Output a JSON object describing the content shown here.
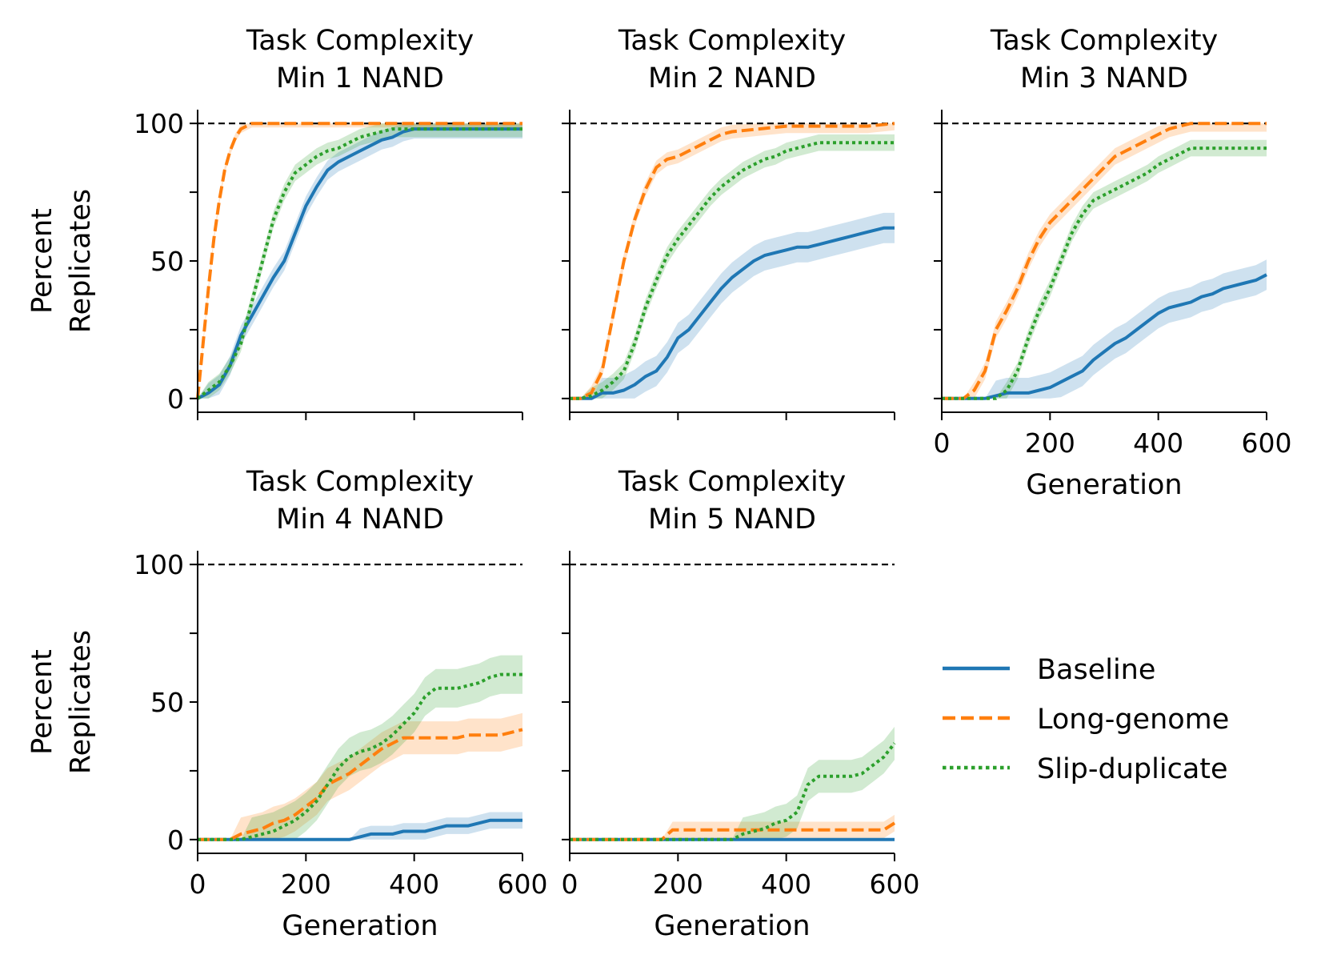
{
  "figure": {
    "y_axis_label_line1": "Percent",
    "y_axis_label_line2": "Replicates",
    "x_axis_label": "Generation",
    "reference_line_value": 100,
    "legend": [
      {
        "label": "Baseline",
        "color": "#1f77b4",
        "style": "solid"
      },
      {
        "label": "Long-genome",
        "color": "#ff7f0e",
        "style": "dashed"
      },
      {
        "label": "Slip-duplicate",
        "color": "#2ca02c",
        "style": "dotted"
      }
    ]
  },
  "chart_data": [
    {
      "type": "line",
      "title_line1": "Task Complexity",
      "title_line2": "Min 1 NAND",
      "xlim": [
        0,
        600
      ],
      "ylim": [
        -5,
        105
      ],
      "xticks": [
        0,
        200,
        400,
        600
      ],
      "yticks": [
        0,
        25,
        50,
        75,
        100
      ],
      "ytick_labels": [
        "0",
        "",
        "50",
        "",
        "100"
      ],
      "show_xtick_labels": false,
      "show_ytick_labels": true,
      "show_xlabel": false,
      "show_ylabel": true,
      "series": [
        {
          "name": "Baseline",
          "color": "#1f77b4",
          "dash": "solid",
          "band": 3.5,
          "x": [
            0,
            20,
            40,
            60,
            80,
            100,
            120,
            140,
            160,
            180,
            200,
            220,
            240,
            260,
            280,
            300,
            320,
            340,
            360,
            380,
            400,
            420,
            440,
            460,
            480,
            500,
            520,
            540,
            560,
            580,
            600
          ],
          "y": [
            0,
            2,
            5,
            12,
            23,
            30,
            37,
            44,
            50,
            60,
            70,
            77,
            83,
            86,
            88,
            90,
            92,
            94,
            95,
            97,
            98,
            98,
            98,
            98,
            98,
            98,
            98,
            98,
            98,
            98,
            98
          ]
        },
        {
          "name": "Long-genome",
          "color": "#ff7f0e",
          "dash": "dashed",
          "band": 1.5,
          "x": [
            0,
            10,
            20,
            30,
            40,
            50,
            60,
            70,
            80,
            90,
            100,
            120,
            600
          ],
          "y": [
            0,
            20,
            40,
            58,
            72,
            83,
            90,
            95,
            98,
            99,
            100,
            100,
            100
          ]
        },
        {
          "name": "Slip-duplicate",
          "color": "#2ca02c",
          "dash": "dotted",
          "band": 3,
          "x": [
            0,
            20,
            40,
            60,
            80,
            100,
            120,
            140,
            160,
            180,
            200,
            220,
            240,
            260,
            280,
            300,
            320,
            340,
            360,
            380,
            400,
            600
          ],
          "y": [
            0,
            3,
            6,
            12,
            20,
            35,
            50,
            65,
            75,
            82,
            85,
            88,
            90,
            91,
            93,
            95,
            96,
            97,
            98,
            98,
            98,
            98
          ]
        }
      ]
    },
    {
      "type": "line",
      "title_line1": "Task Complexity",
      "title_line2": "Min 2 NAND",
      "xlim": [
        0,
        600
      ],
      "ylim": [
        -5,
        105
      ],
      "xticks": [
        0,
        200,
        400,
        600
      ],
      "yticks": [
        0,
        25,
        50,
        75,
        100
      ],
      "ytick_labels": [
        "",
        "",
        "",
        "",
        ""
      ],
      "show_xtick_labels": false,
      "show_ytick_labels": false,
      "show_xlabel": false,
      "show_ylabel": false,
      "series": [
        {
          "name": "Baseline",
          "color": "#1f77b4",
          "dash": "solid",
          "band": 5.5,
          "x": [
            0,
            20,
            40,
            60,
            80,
            100,
            120,
            140,
            160,
            180,
            200,
            220,
            240,
            260,
            280,
            300,
            320,
            340,
            360,
            380,
            400,
            420,
            440,
            460,
            480,
            500,
            520,
            540,
            560,
            580,
            600
          ],
          "y": [
            0,
            0,
            0,
            2,
            2,
            3,
            5,
            8,
            10,
            15,
            22,
            25,
            30,
            35,
            40,
            44,
            47,
            50,
            52,
            53,
            54,
            55,
            55,
            56,
            57,
            58,
            59,
            60,
            61,
            62,
            62
          ]
        },
        {
          "name": "Long-genome",
          "color": "#ff7f0e",
          "dash": "dashed",
          "band": 2.5,
          "x": [
            0,
            20,
            40,
            60,
            80,
            100,
            120,
            140,
            160,
            180,
            200,
            220,
            240,
            260,
            280,
            300,
            350,
            400,
            450,
            500,
            550,
            600
          ],
          "y": [
            0,
            0,
            2,
            10,
            30,
            50,
            65,
            76,
            84,
            87,
            88,
            90,
            92,
            94,
            96,
            97,
            98,
            99,
            99,
            99,
            99,
            100
          ]
        },
        {
          "name": "Slip-duplicate",
          "color": "#2ca02c",
          "dash": "dotted",
          "band": 3,
          "x": [
            0,
            20,
            40,
            60,
            80,
            100,
            120,
            140,
            160,
            180,
            200,
            220,
            240,
            260,
            280,
            300,
            320,
            340,
            360,
            380,
            400,
            420,
            440,
            460,
            480,
            500,
            520,
            540,
            560,
            580,
            600
          ],
          "y": [
            0,
            0,
            1,
            3,
            6,
            10,
            20,
            33,
            43,
            52,
            58,
            63,
            68,
            73,
            77,
            80,
            83,
            85,
            87,
            88,
            90,
            91,
            92,
            93,
            93,
            93,
            93,
            93,
            93,
            93,
            93
          ]
        }
      ]
    },
    {
      "type": "line",
      "title_line1": "Task Complexity",
      "title_line2": "Min 3 NAND",
      "xlim": [
        0,
        600
      ],
      "ylim": [
        -5,
        105
      ],
      "xticks": [
        0,
        200,
        400,
        600
      ],
      "yticks": [
        0,
        25,
        50,
        75,
        100
      ],
      "ytick_labels": [
        "",
        "",
        "",
        "",
        ""
      ],
      "show_xtick_labels": true,
      "show_ytick_labels": false,
      "show_xlabel": true,
      "show_ylabel": false,
      "series": [
        {
          "name": "Baseline",
          "color": "#1f77b4",
          "dash": "solid",
          "band": 5.5,
          "x": [
            0,
            20,
            40,
            60,
            80,
            100,
            120,
            140,
            160,
            180,
            200,
            220,
            240,
            260,
            280,
            300,
            320,
            340,
            360,
            380,
            400,
            420,
            440,
            460,
            480,
            500,
            520,
            540,
            560,
            580,
            600
          ],
          "y": [
            0,
            0,
            0,
            0,
            0,
            1,
            2,
            2,
            2,
            3,
            4,
            6,
            8,
            10,
            14,
            17,
            20,
            22,
            25,
            28,
            31,
            33,
            34,
            35,
            37,
            38,
            40,
            41,
            42,
            43,
            45
          ]
        },
        {
          "name": "Long-genome",
          "color": "#ff7f0e",
          "dash": "dashed",
          "band": 3,
          "x": [
            0,
            20,
            40,
            60,
            80,
            100,
            120,
            140,
            160,
            180,
            200,
            220,
            240,
            260,
            280,
            300,
            320,
            340,
            360,
            380,
            400,
            420,
            440,
            460,
            480,
            500,
            520,
            540,
            560,
            580,
            600
          ],
          "y": [
            0,
            0,
            0,
            3,
            10,
            25,
            32,
            40,
            50,
            58,
            64,
            68,
            72,
            76,
            80,
            84,
            88,
            90,
            92,
            94,
            96,
            98,
            99,
            100,
            100,
            100,
            100,
            100,
            100,
            100,
            100
          ]
        },
        {
          "name": "Slip-duplicate",
          "color": "#2ca02c",
          "dash": "dotted",
          "band": 3,
          "x": [
            0,
            20,
            40,
            60,
            80,
            100,
            120,
            140,
            160,
            180,
            200,
            220,
            240,
            260,
            280,
            300,
            320,
            340,
            360,
            380,
            400,
            420,
            440,
            460,
            480,
            500,
            520,
            540,
            560,
            580,
            600
          ],
          "y": [
            0,
            0,
            0,
            0,
            0,
            0,
            3,
            10,
            22,
            32,
            40,
            50,
            60,
            67,
            72,
            74,
            76,
            78,
            80,
            82,
            85,
            87,
            89,
            91,
            91,
            91,
            91,
            91,
            91,
            91,
            91
          ]
        }
      ]
    },
    {
      "type": "line",
      "title_line1": "Task Complexity",
      "title_line2": "Min 4 NAND",
      "xlim": [
        0,
        600
      ],
      "ylim": [
        -5,
        105
      ],
      "xticks": [
        0,
        200,
        400,
        600
      ],
      "yticks": [
        0,
        25,
        50,
        75,
        100
      ],
      "ytick_labels": [
        "0",
        "",
        "50",
        "",
        "100"
      ],
      "show_xtick_labels": true,
      "show_ytick_labels": true,
      "show_xlabel": true,
      "show_ylabel": true,
      "series": [
        {
          "name": "Baseline",
          "color": "#1f77b4",
          "dash": "solid",
          "band": 3,
          "x": [
            0,
            280,
            300,
            320,
            340,
            360,
            380,
            400,
            420,
            440,
            460,
            480,
            500,
            520,
            540,
            560,
            580,
            600
          ],
          "y": [
            0,
            0,
            1,
            2,
            2,
            2,
            3,
            3,
            3,
            4,
            5,
            5,
            5,
            6,
            7,
            7,
            7,
            7
          ]
        },
        {
          "name": "Long-genome",
          "color": "#ff7f0e",
          "dash": "dashed",
          "band": 6,
          "x": [
            0,
            60,
            80,
            100,
            120,
            140,
            160,
            180,
            200,
            220,
            240,
            260,
            280,
            300,
            320,
            340,
            360,
            380,
            400,
            420,
            440,
            460,
            480,
            500,
            520,
            540,
            560,
            580,
            600
          ],
          "y": [
            0,
            0,
            2,
            3,
            4,
            6,
            7,
            9,
            12,
            15,
            20,
            22,
            24,
            27,
            30,
            33,
            35,
            37,
            37,
            37,
            37,
            37,
            37,
            38,
            38,
            38,
            38,
            39,
            40
          ]
        },
        {
          "name": "Slip-duplicate",
          "color": "#2ca02c",
          "dash": "dotted",
          "band": 7,
          "x": [
            0,
            60,
            80,
            100,
            120,
            140,
            160,
            180,
            200,
            220,
            240,
            260,
            280,
            300,
            320,
            340,
            360,
            380,
            400,
            420,
            440,
            460,
            480,
            500,
            520,
            540,
            560,
            580,
            600
          ],
          "y": [
            0,
            0,
            0,
            1,
            2,
            3,
            5,
            7,
            10,
            14,
            20,
            26,
            30,
            32,
            33,
            35,
            38,
            42,
            46,
            52,
            55,
            55,
            55,
            56,
            57,
            59,
            60,
            60,
            60
          ]
        }
      ]
    },
    {
      "type": "line",
      "title_line1": "Task Complexity",
      "title_line2": "Min 5 NAND",
      "xlim": [
        0,
        600
      ],
      "ylim": [
        -5,
        105
      ],
      "xticks": [
        0,
        200,
        400,
        600
      ],
      "yticks": [
        0,
        25,
        50,
        75,
        100
      ],
      "ytick_labels": [
        "",
        "",
        "",
        "",
        ""
      ],
      "show_xtick_labels": true,
      "show_ytick_labels": false,
      "show_xlabel": true,
      "show_ylabel": false,
      "series": [
        {
          "name": "Baseline",
          "color": "#1f77b4",
          "dash": "solid",
          "band": 0,
          "x": [
            0,
            600
          ],
          "y": [
            0,
            0
          ]
        },
        {
          "name": "Long-genome",
          "color": "#ff7f0e",
          "dash": "dashed",
          "band": 3,
          "x": [
            0,
            170,
            190,
            580,
            600
          ],
          "y": [
            0,
            0,
            3.5,
            3.5,
            6
          ]
        },
        {
          "name": "Slip-duplicate",
          "color": "#2ca02c",
          "dash": "dotted",
          "band": 6,
          "x": [
            0,
            300,
            320,
            340,
            360,
            380,
            400,
            420,
            440,
            460,
            480,
            500,
            520,
            540,
            560,
            580,
            600
          ],
          "y": [
            0,
            0,
            2,
            3,
            4,
            6,
            7,
            10,
            20,
            23,
            23,
            23,
            23,
            24,
            27,
            30,
            35
          ]
        }
      ]
    }
  ]
}
